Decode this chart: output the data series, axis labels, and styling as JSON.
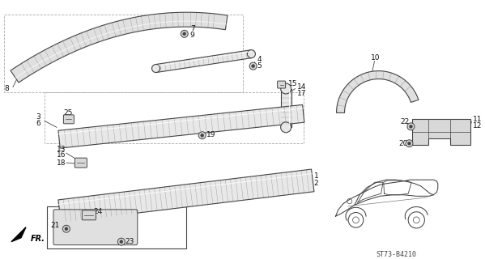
{
  "bg_color": "#ffffff",
  "lc": "#444444",
  "dgray": "#666666",
  "lgray": "#cccccc",
  "diagram_code": "ST73-B4210",
  "figsize": [
    5.99,
    3.2
  ],
  "dpi": 100
}
